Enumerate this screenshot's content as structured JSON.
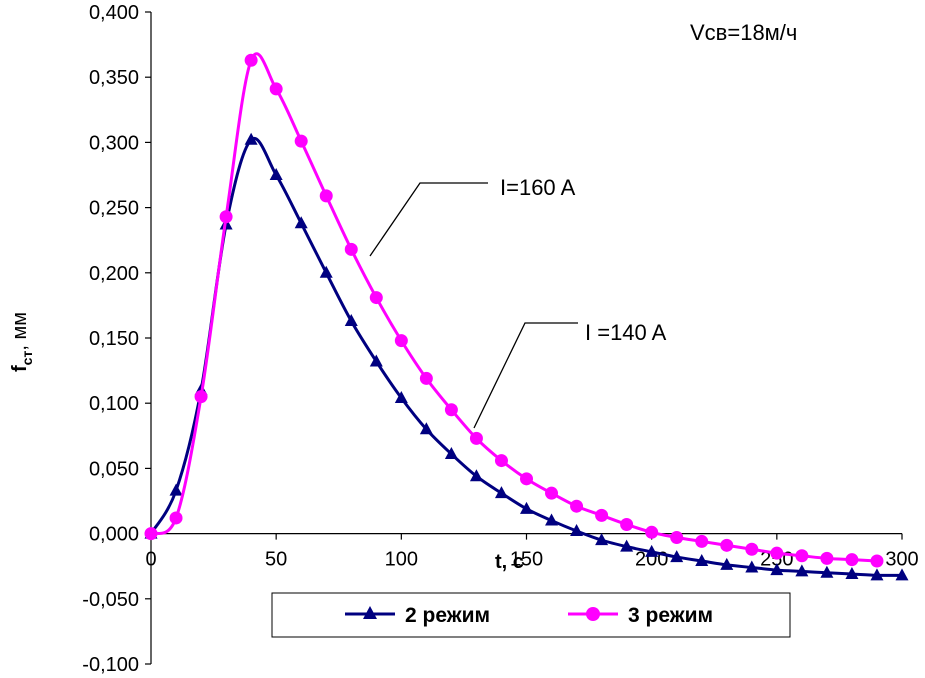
{
  "chart_data": {
    "type": "line",
    "xlabel": "t, c",
    "ylabel": "f",
    "ylabel_sub": "ст",
    "ylabel_unit": ", мм",
    "xlim": [
      0,
      300
    ],
    "ylim": [
      -0.1,
      0.4
    ],
    "x_ticks": [
      "0",
      "50",
      "100",
      "150",
      "200",
      "250",
      "300"
    ],
    "y_ticks": [
      "-0,100",
      "-0,050",
      "0,000",
      "0,050",
      "0,100",
      "0,150",
      "0,200",
      "0,250",
      "0,300",
      "0,350",
      "0,400"
    ],
    "grid": false,
    "legend": "bottom-center",
    "annotations": [
      {
        "text": "Vсв=18м/ч"
      },
      {
        "text": "I=160 A"
      },
      {
        "text": "I =140 A"
      }
    ],
    "x": [
      0,
      10,
      20,
      30,
      40,
      50,
      60,
      70,
      80,
      90,
      100,
      110,
      120,
      130,
      140,
      150,
      160,
      170,
      180,
      190,
      200,
      210,
      220,
      230,
      240,
      250,
      260,
      270,
      280,
      290,
      300
    ],
    "series": [
      {
        "name": "2 режим",
        "color": "#000080",
        "marker": "triangle",
        "x": [
          0,
          10,
          20,
          30,
          40,
          50,
          60,
          70,
          80,
          90,
          100,
          110,
          120,
          130,
          140,
          150,
          160,
          170,
          180,
          190,
          200,
          210,
          220,
          230,
          240,
          250,
          260,
          270,
          280,
          290,
          300
        ],
        "values": [
          0.0,
          0.033,
          0.11,
          0.237,
          0.302,
          0.275,
          0.238,
          0.2,
          0.163,
          0.132,
          0.104,
          0.08,
          0.061,
          0.044,
          0.031,
          0.019,
          0.01,
          0.002,
          -0.005,
          -0.01,
          -0.014,
          -0.018,
          -0.021,
          -0.024,
          -0.026,
          -0.028,
          -0.029,
          -0.03,
          -0.031,
          -0.032,
          -0.032
        ]
      },
      {
        "name": "3 режим",
        "color": "#ff00ff",
        "marker": "circle",
        "x": [
          0,
          10,
          20,
          30,
          40,
          50,
          60,
          70,
          80,
          90,
          100,
          110,
          120,
          130,
          140,
          150,
          160,
          170,
          180,
          190,
          200,
          210,
          220,
          230,
          240,
          250,
          260,
          270,
          280,
          290
        ],
        "values": [
          0.0,
          0.012,
          0.105,
          0.243,
          0.363,
          0.341,
          0.301,
          0.259,
          0.218,
          0.181,
          0.148,
          0.119,
          0.095,
          0.073,
          0.056,
          0.042,
          0.031,
          0.021,
          0.014,
          0.007,
          0.001,
          -0.003,
          -0.006,
          -0.009,
          -0.012,
          -0.015,
          -0.017,
          -0.019,
          -0.02,
          -0.021
        ]
      }
    ]
  }
}
